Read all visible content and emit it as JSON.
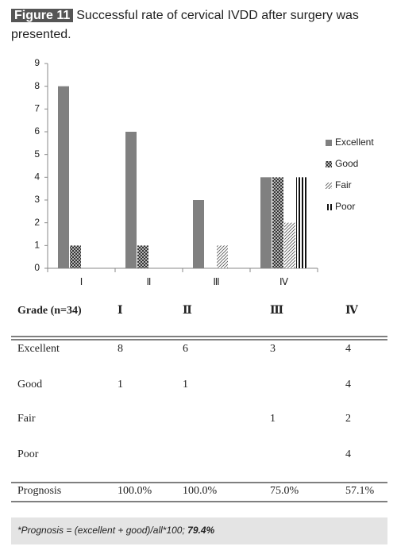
{
  "figure": {
    "label": "Figure 11",
    "caption": "Successful rate of cervical IVDD after surgery was presented."
  },
  "chart_data": {
    "type": "bar",
    "categories": [
      "Ⅰ",
      "Ⅱ",
      "Ⅲ",
      "Ⅳ"
    ],
    "series": [
      {
        "name": "Excellent",
        "color": "#808080",
        "pattern": "solid",
        "values": [
          8,
          6,
          3,
          4
        ]
      },
      {
        "name": "Good",
        "color": "#333333",
        "pattern": "crosshatch",
        "values": [
          1,
          1,
          null,
          4
        ]
      },
      {
        "name": "Fair",
        "color": "#555555",
        "pattern": "diagonal",
        "values": [
          null,
          null,
          1,
          2
        ]
      },
      {
        "name": "Poor",
        "color": "#111111",
        "pattern": "vertical",
        "values": [
          null,
          null,
          null,
          4
        ]
      }
    ],
    "ylim": [
      0,
      9
    ],
    "yticks": [
      0,
      1,
      2,
      3,
      4,
      5,
      6,
      7,
      8,
      9
    ],
    "grid": false,
    "legend": "right"
  },
  "table": {
    "header": [
      "Grade (n=34)",
      "Ⅰ",
      "Ⅱ",
      "Ⅲ",
      "Ⅳ"
    ],
    "rows": [
      [
        "Excellent",
        "8",
        "6",
        "3",
        "4"
      ],
      [
        "Good",
        "1",
        "1",
        null,
        "4"
      ],
      [
        "Fair",
        null,
        null,
        "1",
        "2"
      ],
      [
        "Poor",
        null,
        null,
        null,
        "4"
      ]
    ],
    "footer": [
      "Prognosis",
      "100.0%",
      "100.0%",
      "75.0%",
      "57.1%"
    ]
  },
  "footnote": {
    "text": "*Prognosis = (excellent + good)/all*100; ",
    "highlight": "79.4%"
  }
}
